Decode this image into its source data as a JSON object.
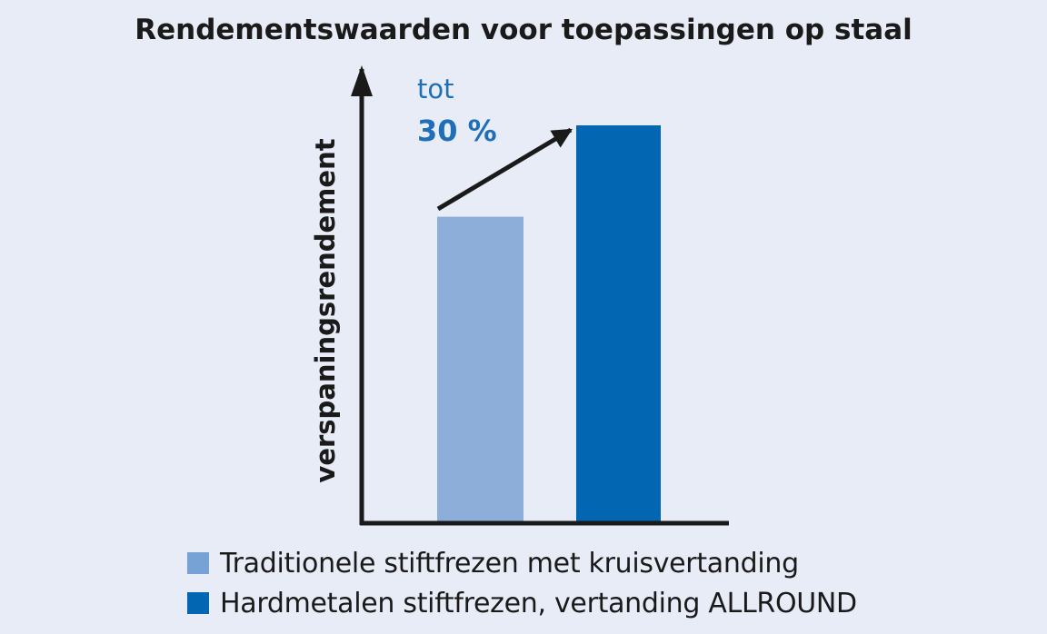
{
  "colors": {
    "background": "#e8ecf6",
    "axis": "#1a1a1a",
    "text": "#1a1a1a",
    "annotation": "#1f6fb8"
  },
  "chart_data": {
    "type": "bar",
    "title": "Rendementswaarden voor toepassingen op staal",
    "xlabel": "",
    "ylabel": "verspaningsrendement",
    "ylim": [
      0,
      130
    ],
    "grid": false,
    "legend_position": "bottom",
    "categories": [
      "Traditionele stiftfrezen met kruisvertanding",
      "Hardmetalen stiftfrezen, vertanding ALLROUND"
    ],
    "values": [
      100,
      130
    ],
    "bar_colors": [
      "#8daed9",
      "#0266b3"
    ],
    "annotation": {
      "line1": "tot",
      "line2": "30 %"
    }
  }
}
